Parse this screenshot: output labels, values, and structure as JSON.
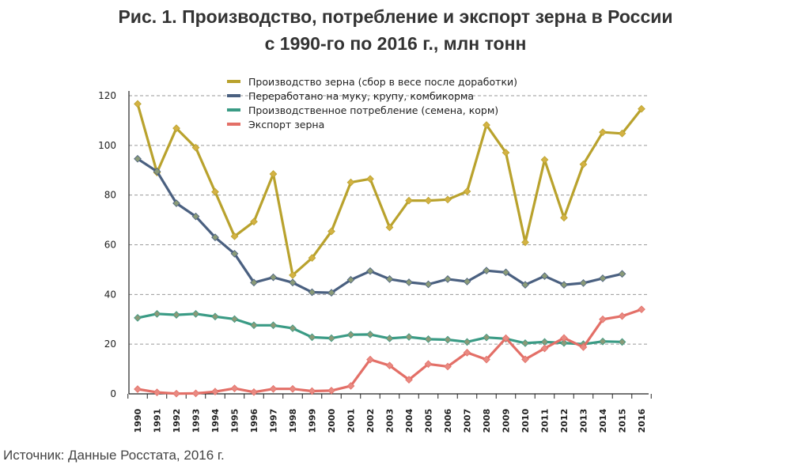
{
  "title_line1": "Рис. 1. Производство, потребление и экспорт зерна в России",
  "title_line2": "с 1990-го по 2016 г., млн тонн",
  "source": "Источник: Данные Росстата, 2016 г.",
  "chart_data": {
    "type": "line",
    "ylim": [
      0,
      120
    ],
    "yticks": [
      0,
      20,
      40,
      60,
      80,
      100,
      120
    ],
    "grid": "horizontal dashed",
    "legend_position": "top",
    "x": [
      "1990",
      "1991",
      "1992",
      "1993",
      "1994",
      "1995",
      "1996",
      "1997",
      "1998",
      "1999",
      "2000",
      "2001",
      "2002",
      "2003",
      "2004",
      "2005",
      "2006",
      "2007",
      "2008",
      "2009",
      "2010",
      "2011",
      "2012",
      "2013",
      "2014",
      "2015",
      "2016"
    ],
    "series": [
      {
        "name": "Производство зерна  (сбор в весе после доработки)",
        "color": "#b9a22d",
        "values": [
          116.7,
          89.1,
          106.9,
          99.1,
          81.3,
          63.4,
          69.3,
          88.5,
          47.8,
          54.7,
          65.4,
          85.1,
          86.5,
          67.0,
          77.8,
          77.8,
          78.2,
          81.5,
          108.2,
          97.1,
          61.0,
          94.2,
          70.9,
          92.4,
          105.3,
          104.8,
          114.7
        ]
      },
      {
        "name": "Переработано на муку, крупу, комбикорма",
        "color": "#4a6080",
        "values": [
          94.6,
          89.5,
          76.7,
          71.4,
          63.0,
          56.4,
          44.8,
          46.9,
          44.8,
          40.9,
          40.7,
          45.9,
          49.4,
          46.2,
          44.9,
          44.1,
          46.2,
          45.2,
          49.6,
          48.9,
          43.9,
          47.4,
          43.9,
          44.6,
          46.5,
          48.3,
          null
        ]
      },
      {
        "name": "Производственное потребление (семена, корм)",
        "color": "#3a9b85",
        "values": [
          30.6,
          32.2,
          31.8,
          32.2,
          31.1,
          30.1,
          27.6,
          27.6,
          26.4,
          22.8,
          22.4,
          23.8,
          23.9,
          22.3,
          22.9,
          22.0,
          21.8,
          20.9,
          22.7,
          22.2,
          20.4,
          20.9,
          20.5,
          20.0,
          21.1,
          20.9,
          null
        ]
      },
      {
        "name": "Экспорт  зерна",
        "color": "#e36f67",
        "values": [
          1.9,
          0.6,
          0.1,
          0.2,
          0.9,
          2.2,
          0.7,
          2.0,
          2.0,
          1.1,
          1.3,
          3.2,
          13.8,
          11.4,
          5.7,
          12.0,
          11.0,
          16.6,
          13.8,
          22.4,
          13.9,
          18.3,
          22.5,
          18.8,
          30.0,
          31.3,
          34.0
        ]
      }
    ]
  }
}
